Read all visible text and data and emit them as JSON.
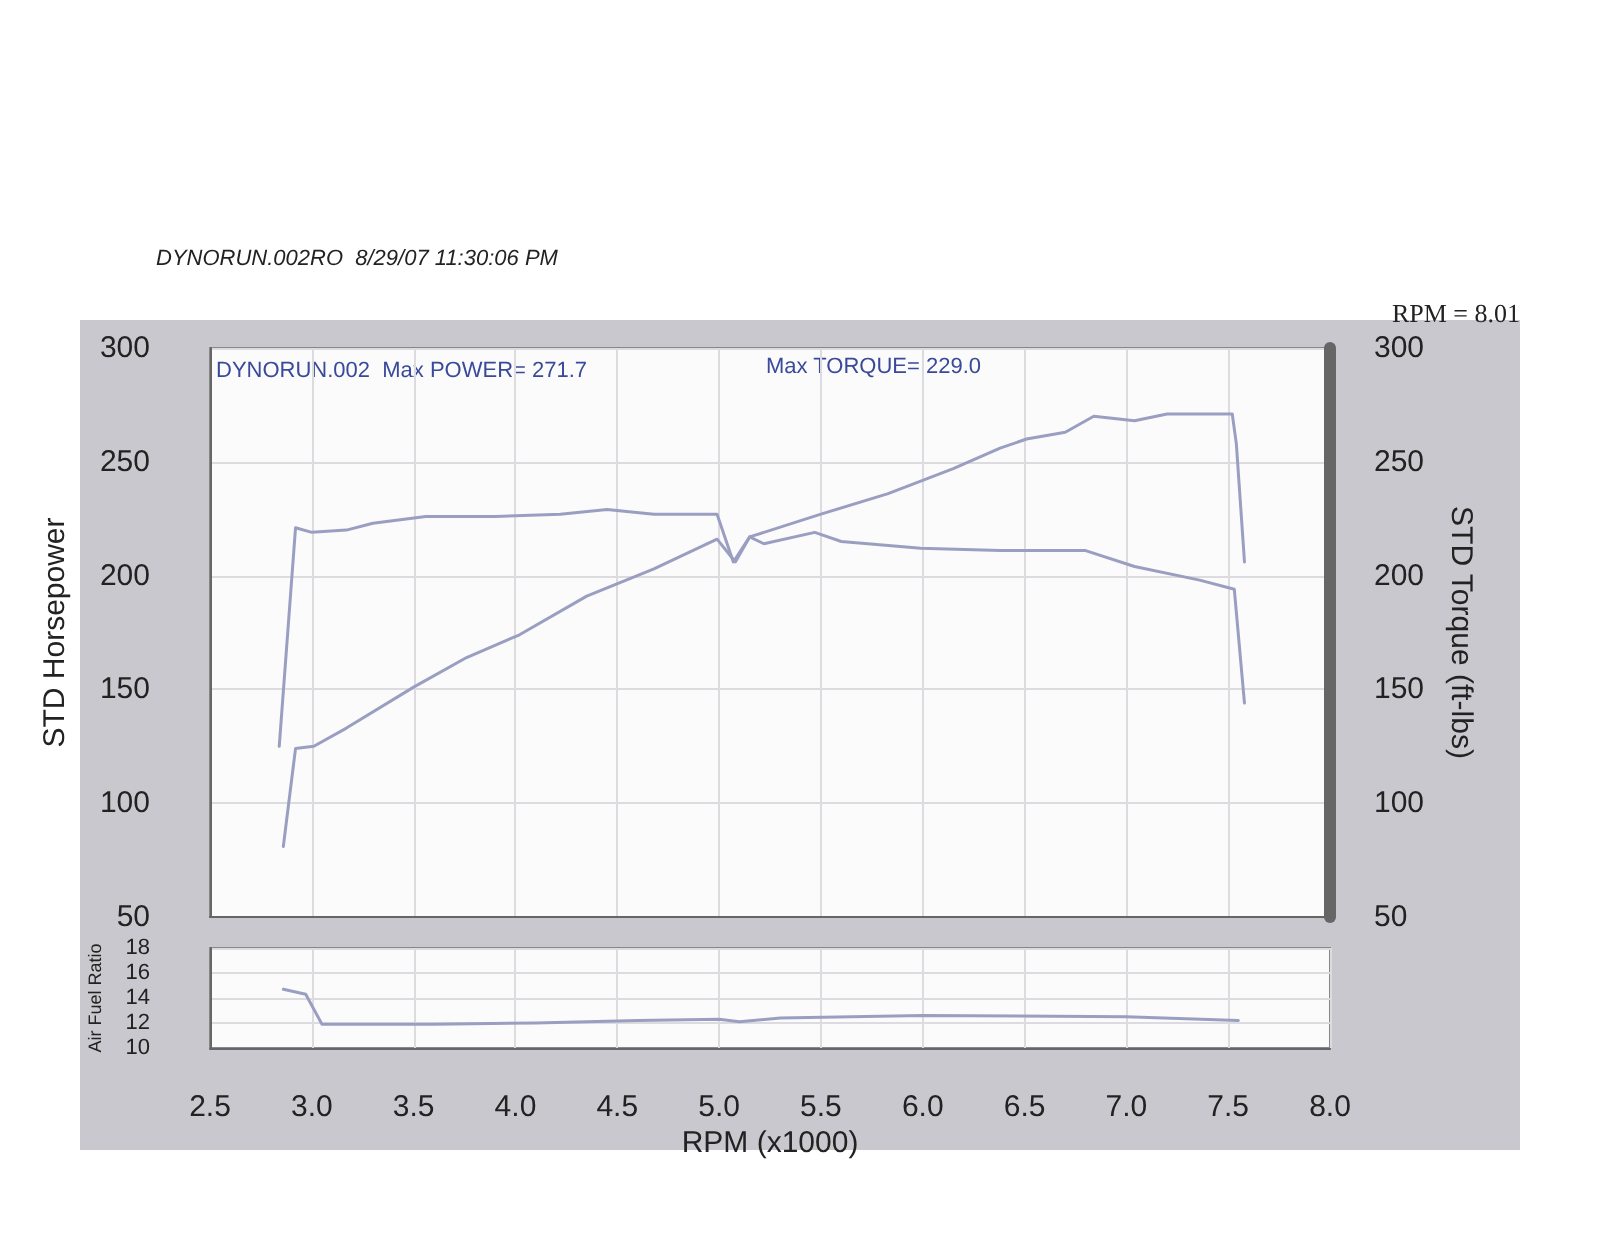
{
  "chart_data": [
    {
      "type": "line",
      "ylabel": "STD Horsepower",
      "y2label": "STD Torque (ft-lbs)",
      "annotations": [
        "DYNORUN.002RO  8/29/07 11:30:06 PM",
        "DYNORUN.002  Max POWER= 271.7",
        "Max TORQUE= 229.0",
        "RPM = 8.01"
      ],
      "xlim": [
        2.5,
        8.0
      ],
      "xticks": [
        2.5,
        3,
        3.5,
        4,
        4.5,
        5,
        5.5,
        6,
        6.5,
        7,
        7.5,
        8
      ],
      "tick_labels": "y",
      "ylim": [
        50,
        300
      ],
      "yticks": [
        50,
        100,
        150,
        200,
        250,
        300
      ],
      "y2lim": [
        50,
        300
      ],
      "y2ticks": [
        50,
        100,
        150,
        200,
        250,
        300
      ],
      "grid": true,
      "marker": "none",
      "line_style": "solid",
      "series": [
        {
          "color": "#9a9fc2",
          "x": [
            2.86,
            2.92,
            3.01,
            3.17,
            3.5,
            3.76,
            4.02,
            4.35,
            4.68,
            4.99,
            5.08,
            5.15,
            5.5,
            5.83,
            6.15,
            6.38,
            6.51,
            6.7,
            6.84,
            7.04,
            7.2,
            7.49,
            7.52,
            7.54,
            7.58
          ],
          "values": [
            81,
            124,
            125,
            133,
            151,
            164,
            174,
            191,
            203,
            216,
            206,
            217,
            227,
            236,
            247,
            256,
            260,
            263,
            270,
            268,
            271,
            271,
            271,
            258,
            206
          ]
        },
        {
          "color": "#9a9fc2",
          "x": [
            2.84,
            2.92,
            3.0,
            3.17,
            3.3,
            3.56,
            3.9,
            4.22,
            4.45,
            4.68,
            4.99,
            5.07,
            5.15,
            5.22,
            5.47,
            5.6,
            5.99,
            6.38,
            6.55,
            6.8,
            7.04,
            7.36,
            7.53,
            7.58
          ],
          "values": [
            125,
            221,
            219,
            220,
            223,
            226,
            226,
            227,
            229,
            227,
            227,
            206,
            217,
            214,
            219,
            215,
            212,
            211,
            211,
            211,
            204,
            198,
            194,
            144
          ]
        }
      ]
    },
    {
      "type": "line",
      "xlabel": "RPM (x1000)",
      "ylabel": "Air Fuel Ratio",
      "xlim": [
        2.5,
        8.0
      ],
      "xticks": [
        {
          "value": 2.5,
          "label": "2.5"
        },
        {
          "value": 3,
          "label": "3.0"
        },
        {
          "value": 3.5,
          "label": "3.5"
        },
        {
          "value": 4,
          "label": "4.0"
        },
        {
          "value": 4.5,
          "label": "4.5"
        },
        {
          "value": 5,
          "label": "5.0"
        },
        {
          "value": 5.5,
          "label": "5.5"
        },
        {
          "value": 6,
          "label": "6.0"
        },
        {
          "value": 6.5,
          "label": "6.5"
        },
        {
          "value": 7,
          "label": "7.0"
        },
        {
          "value": 7.5,
          "label": "7.5"
        },
        {
          "value": 8,
          "label": "8.0"
        }
      ],
      "ylim": [
        10,
        18
      ],
      "yticks": [
        10,
        12,
        14,
        16,
        18
      ],
      "grid": true,
      "marker": "none",
      "line_style": "solid",
      "series": [
        {
          "color": "#9a9fc2",
          "x": [
            2.86,
            2.97,
            3.05,
            3.6,
            4.1,
            4.6,
            5.0,
            5.1,
            5.3,
            6.0,
            7.0,
            7.55
          ],
          "values": [
            14.7,
            14.3,
            11.9,
            11.9,
            12.0,
            12.2,
            12.3,
            12.1,
            12.4,
            12.6,
            12.5,
            12.2
          ]
        }
      ]
    }
  ]
}
